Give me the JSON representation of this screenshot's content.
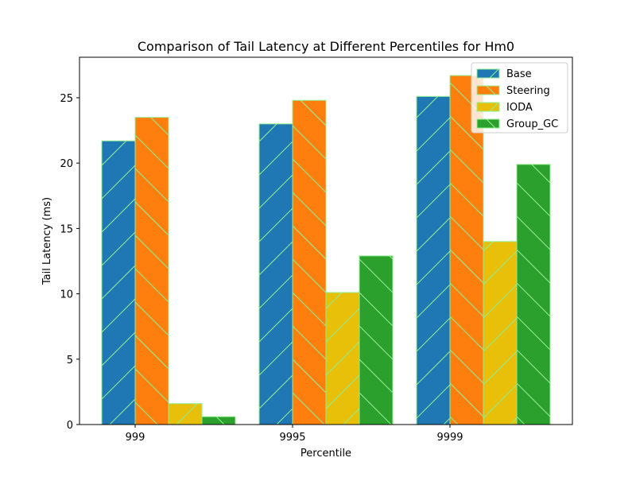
{
  "chart_data": {
    "type": "bar",
    "title": "Comparison of Tail Latency at Different Percentiles for Hm0",
    "xlabel": "Percentile",
    "ylabel": "Tail Latency (ms)",
    "categories": [
      "999",
      "9995",
      "9999"
    ],
    "ylim": [
      0,
      28.1
    ],
    "yticks": [
      0,
      5,
      10,
      15,
      20,
      25
    ],
    "grid": false,
    "legend_position": "top-right",
    "series": [
      {
        "name": "Base",
        "values": [
          21.7,
          23.0,
          25.1
        ],
        "color": "#1f77b4",
        "hatch": "/"
      },
      {
        "name": "Steering",
        "values": [
          23.5,
          24.8,
          26.7
        ],
        "color": "#ff7f0e",
        "hatch": "\\"
      },
      {
        "name": "IODA",
        "values": [
          1.6,
          10.1,
          14.0
        ],
        "color": "#e8c00a",
        "hatch": "/"
      },
      {
        "name": "Group_GC",
        "values": [
          0.6,
          12.9,
          19.9
        ],
        "color": "#2ca02c",
        "hatch": "\\"
      }
    ],
    "edge_color": "#90ee90"
  }
}
